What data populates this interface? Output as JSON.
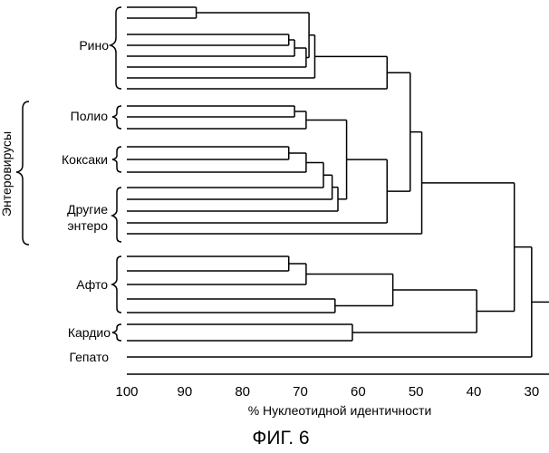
{
  "figure": {
    "caption": "ФИГ. 6",
    "xlabel": "% Нуклеотидной идентичности",
    "x_ticks": [
      100,
      90,
      80,
      70,
      60,
      50,
      40,
      30
    ],
    "x_range": [
      100,
      27
    ],
    "group_labels": {
      "rhino": "Рино",
      "polio": "Полио",
      "coxsackie": "Коксаки",
      "other_entero_line1": "Другие",
      "other_entero_line2": "энтеро",
      "aphtho": "Афто",
      "cardio": "Кардио",
      "hepato": "Гепато",
      "enteroviruses": "Энтеровирусы"
    },
    "leaf_count": 25,
    "merges": [
      {
        "leaves": [
          0,
          1
        ],
        "identity": 88
      },
      {
        "leaves": [
          2,
          3
        ],
        "identity": 72
      },
      {
        "leaves": [
          6,
          7
        ],
        "identity": 71
      },
      {
        "leaves": [
          8,
          9
        ],
        "identity": 72
      },
      {
        "leaves": [
          14,
          15
        ],
        "identity": 72
      },
      {
        "leaves": [
          17,
          18
        ],
        "identity": 72
      },
      {
        "leaves": [
          22,
          23
        ],
        "identity": 61
      },
      {
        "identity": 71,
        "note": "rhino: (2,3) + leaf 4"
      },
      {
        "identity": 69,
        "note": "rhino: + leaf 5"
      },
      {
        "identity": 68,
        "note": "rhino: + (0,1)"
      },
      {
        "identity": 67.5,
        "note": "rhino: + leaf 6"
      },
      {
        "identity": 55,
        "note": "rhino: + leaf 7"
      },
      {
        "identity": 69,
        "note": "polio: (8,9) + leaf 10"
      },
      {
        "identity": 69,
        "note": "coxsackie: + leaf 12"
      },
      {
        "identity": 66,
        "note": "+ leaf 13"
      },
      {
        "identity": 64,
        "note": "+ leaf 14"
      },
      {
        "identity": 62,
        "note": "polio + coxsackie"
      },
      {
        "identity": 55,
        "note": "entero clusters"
      },
      {
        "identity": 52,
        "note": "+ leaf 15"
      },
      {
        "identity": 51,
        "note": "rhino + entero"
      },
      {
        "identity": 49,
        "note": "+ leaf 16"
      },
      {
        "identity": 69,
        "note": "aphtho: + leaf 19"
      },
      {
        "identity": 64,
        "note": "aphtho: + leaf 20"
      },
      {
        "identity": 54,
        "note": "aphtho subclusters"
      },
      {
        "identity": 39.5,
        "note": "aphtho + cardio"
      },
      {
        "identity": 33,
        "note": "entero/rhino + aphtho/cardio"
      },
      {
        "identity": 30,
        "note": "+ hepato"
      }
    ]
  }
}
